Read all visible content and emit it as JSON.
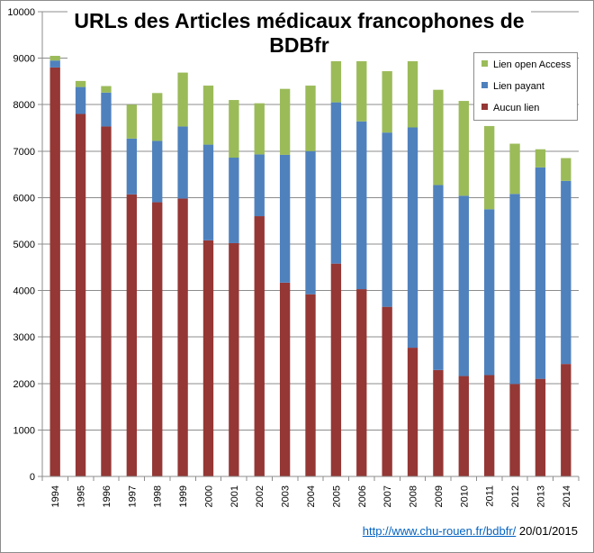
{
  "chart_data": {
    "type": "bar",
    "stacked": true,
    "title": "URLs des Articles médicaux francophones de BDBfr",
    "xlabel": "",
    "ylabel": "",
    "ylim": [
      0,
      10000
    ],
    "yticks": [
      0,
      1000,
      2000,
      3000,
      4000,
      5000,
      6000,
      7000,
      8000,
      9000,
      10000
    ],
    "grid": "horizontal",
    "legend_position": "top-right",
    "categories": [
      "1994",
      "1995",
      "1996",
      "1997",
      "1998",
      "1999",
      "2000",
      "2001",
      "2002",
      "2003",
      "2004",
      "2005",
      "2006",
      "2007",
      "2008",
      "2009",
      "2010",
      "2011",
      "2012",
      "2013",
      "2014"
    ],
    "series": [
      {
        "name": "Aucun lien",
        "color": "#953735",
        "values": [
          8800,
          7800,
          7530,
          6070,
          5900,
          5980,
          5080,
          5020,
          5600,
          4170,
          3920,
          4580,
          4030,
          3650,
          2770,
          2290,
          2160,
          2180,
          1990,
          2100,
          2420
        ]
      },
      {
        "name": "Lien payant",
        "color": "#4f81bd",
        "values": [
          150,
          580,
          730,
          1200,
          1320,
          1550,
          2060,
          1840,
          1330,
          2750,
          3080,
          3470,
          3610,
          3750,
          4740,
          3980,
          3880,
          3570,
          4090,
          4550,
          3940
        ]
      },
      {
        "name": "Lien open Access",
        "color": "#9bbb59",
        "values": [
          100,
          130,
          140,
          730,
          1030,
          1160,
          1270,
          1240,
          1100,
          1420,
          1410,
          1180,
          1310,
          1320,
          1940,
          2050,
          2040,
          1790,
          1080,
          390,
          490
        ]
      }
    ]
  },
  "legend": {
    "items": [
      {
        "label": "Lien open Access",
        "color": "#9bbb59"
      },
      {
        "label": "Lien payant",
        "color": "#4f81bd"
      },
      {
        "label": "Aucun lien",
        "color": "#953735"
      }
    ]
  },
  "footer": {
    "link_text": "http://www.chu-rouen.fr/bdbfr/",
    "date_text": "20/01/2015"
  }
}
